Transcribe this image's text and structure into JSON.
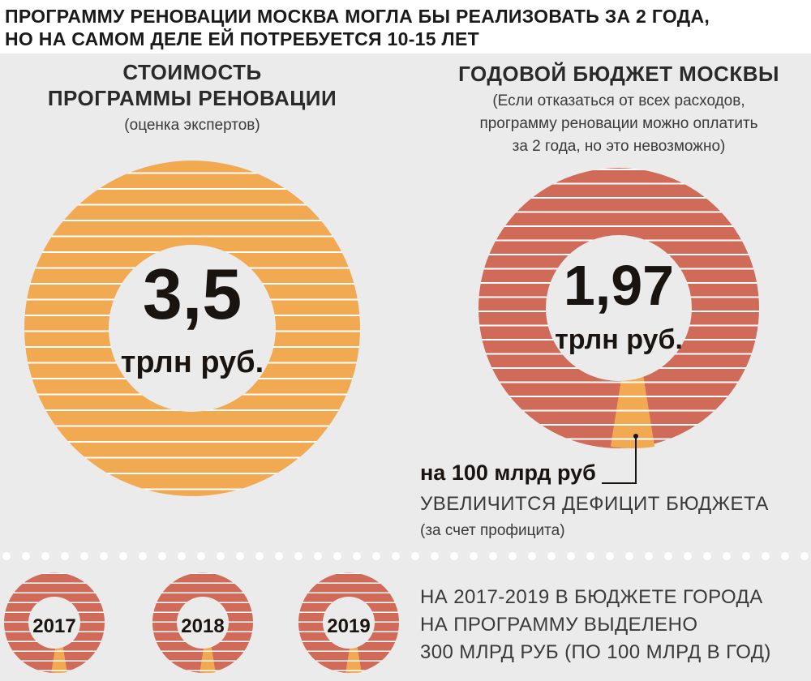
{
  "headline": {
    "line1": "ПРОГРАММУ РЕНОВАЦИИ МОСКВА МОГЛА БЫ РЕАЛИЗОВАТЬ ЗА 2 ГОДА,",
    "line2": "НО НА САМОМ ДЕЛЕ ЕЙ ПОТРЕБУЕТСЯ 10-15 ЛЕТ"
  },
  "colors": {
    "orange": "#f2aa52",
    "red": "#cf6b58",
    "stripe": "#ffffff",
    "panel": "#ebebeb"
  },
  "cost_block": {
    "title_line1": "СТОИМОСТЬ",
    "title_line2": "ПРОГРАММЫ РЕНОВАЦИИ",
    "note": "(оценка экспертов)",
    "value": "3,5",
    "unit": "трлн руб."
  },
  "budget_block": {
    "title": "ГОДОВОЙ БЮДЖЕТ МОСКВЫ",
    "note_line1": "(Если отказаться от всех расходов,",
    "note_line2": "программу реновации можно оплатить",
    "note_line3": "за 2 года, но это невозможно)",
    "value": "1,97",
    "unit": "трлн руб.",
    "segment_share": 0.05
  },
  "deficit": {
    "amount": "на 100 млрд руб",
    "text": "УВЕЛИЧИТСЯ ДЕФИЦИТ БЮДЖЕТА",
    "note": "(за счет профицита)"
  },
  "years": [
    {
      "label": "2017"
    },
    {
      "label": "2018"
    },
    {
      "label": "2019"
    }
  ],
  "summary": {
    "line1": "НА 2017-2019 В БЮДЖЕТЕ ГОРОДА",
    "line2": "НА ПРОГРАММУ ВЫДЕЛЕНО",
    "line3": "300 МЛРД РУБ (ПО 100 МЛРД В ГОД)"
  }
}
